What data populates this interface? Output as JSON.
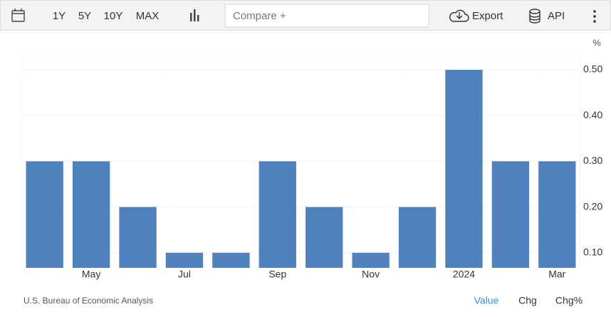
{
  "toolbar": {
    "ranges": [
      "1Y",
      "5Y",
      "10Y",
      "MAX"
    ],
    "compare": "Compare +",
    "export": "Export",
    "api": "API"
  },
  "chart_data": {
    "type": "bar",
    "unit": "%",
    "categories": [
      null,
      "May",
      null,
      "Jul",
      null,
      "Sep",
      null,
      "Nov",
      null,
      "2024",
      null,
      "Mar"
    ],
    "values": [
      0.3,
      0.3,
      0.2,
      0.1,
      0.1,
      0.3,
      0.2,
      0.1,
      0.2,
      0.5,
      0.3,
      0.3
    ],
    "color": "#4f81bd",
    "ylim": [
      0.067,
      0.528
    ],
    "yticks": [
      {
        "value": 0.1,
        "label": "0.10"
      },
      {
        "value": 0.2,
        "label": "0.20"
      },
      {
        "value": 0.3,
        "label": "0.30"
      },
      {
        "value": 0.4,
        "label": "0.40"
      },
      {
        "value": 0.5,
        "label": "0.50"
      }
    ],
    "grid": true
  },
  "footer": {
    "source": "U.S. Bureau of Economic Analysis",
    "tabs": [
      "Value",
      "Chg",
      "Chg%"
    ]
  }
}
